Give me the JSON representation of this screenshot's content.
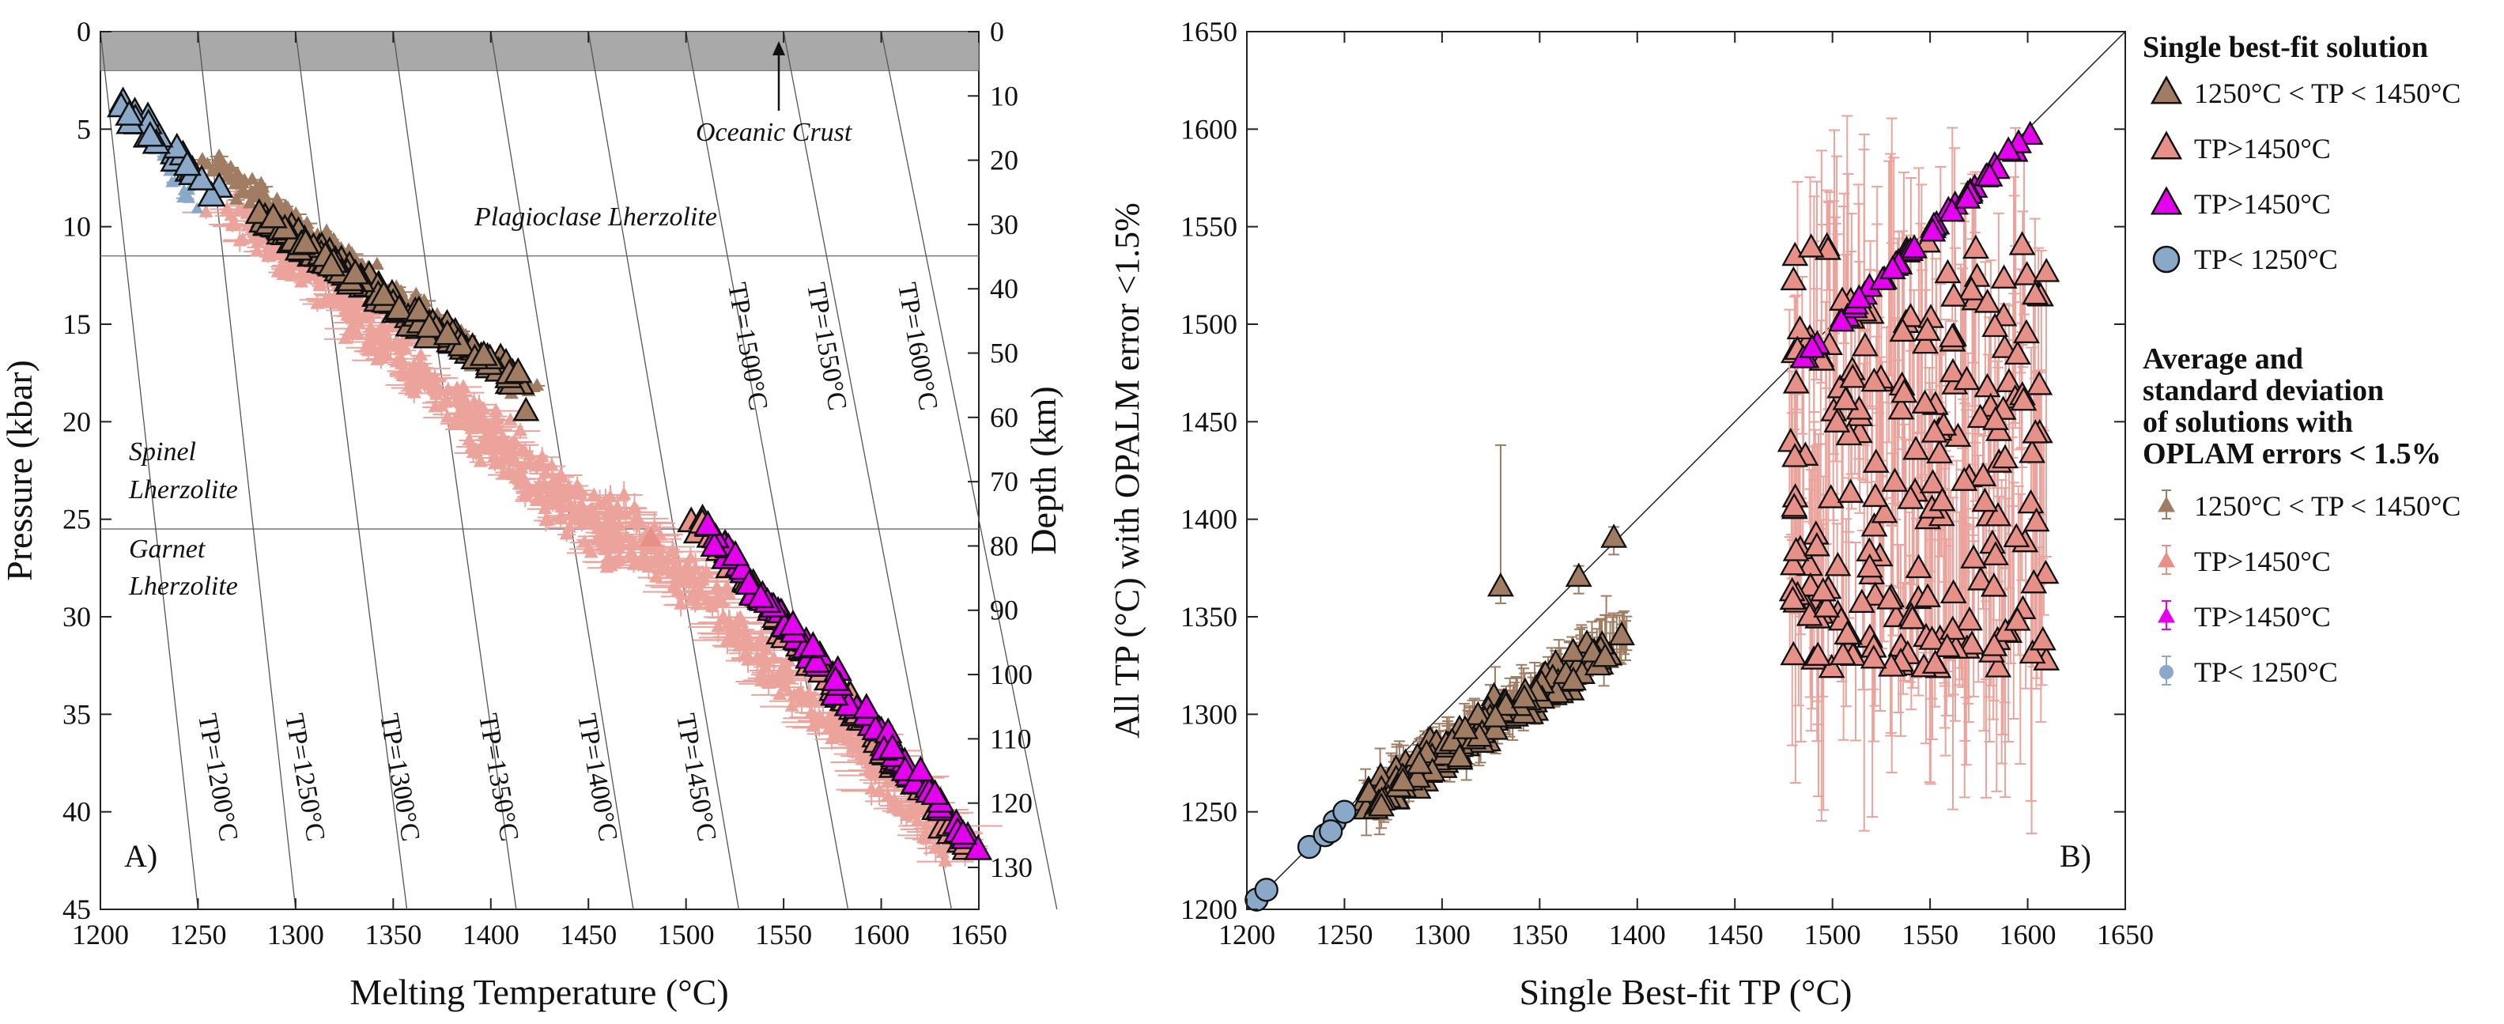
{
  "colors": {
    "brown": "#a07d62",
    "salmon": "#e69088",
    "salmon_light": "#eba39c",
    "magenta": "#e600f0",
    "blue": "#8aa9c9",
    "crust": "#a9a9a9"
  },
  "chart_data": [
    {
      "type": "scatter",
      "panel_label": "A)",
      "xlabel": "Melting Temperature (°C)",
      "ylabel": "Pressure (kbar)",
      "ylabel_right": "Depth (km)",
      "xlim": [
        1200,
        1650
      ],
      "ylim": [
        45,
        0
      ],
      "xticks": [
        "1200",
        "1250",
        "1300",
        "1350",
        "1400",
        "1450",
        "1500",
        "1550",
        "1600",
        "1650"
      ],
      "yticks": [
        "0",
        "5",
        "10",
        "15",
        "20",
        "25",
        "30",
        "35",
        "40",
        "45"
      ],
      "depth_ticks": [
        "0",
        "10",
        "20",
        "30",
        "40",
        "50",
        "60",
        "70",
        "80",
        "90",
        "100",
        "110",
        "120",
        "130"
      ],
      "adiabat_labels": [
        "TP=1200°C",
        "TP=1250°C",
        "TP=1300°C",
        "TP=1350°C",
        "TP=1400°C",
        "TP=1450°C",
        "TP=1500°C",
        "TP=1550°C",
        "TP=1600°C"
      ],
      "adiabats": [
        {
          "tp": 1200,
          "t0": 1200,
          "t45": 1250
        },
        {
          "tp": 1250,
          "t0": 1250,
          "t45": 1300
        },
        {
          "tp": 1300,
          "t0": 1300,
          "t45": 1357
        },
        {
          "tp": 1350,
          "t0": 1350,
          "t45": 1413
        },
        {
          "tp": 1400,
          "t0": 1400,
          "t45": 1473
        },
        {
          "tp": 1450,
          "t0": 1450,
          "t45": 1527
        },
        {
          "tp": 1500,
          "t0": 1500,
          "t45": 1583
        },
        {
          "tp": 1550,
          "t0": 1550,
          "t45": 1636
        },
        {
          "tp": 1600,
          "t0": 1600,
          "t45": 1690
        }
      ],
      "annotations": {
        "oceanic_crust": "Oceanic Crust",
        "plagioclase": "Plagioclase Lherzolite",
        "spinel_1": "Spinel",
        "spinel_2": "Lherzolite",
        "garnet_1": "Garnet",
        "garnet_2": "Lherzolite"
      },
      "crust_pressure": 2.0,
      "boundary_pressures": [
        11.5,
        25.5
      ],
      "series": [
        {
          "name": "1250°C < TP < 1450°C",
          "marker": "triangle",
          "color": "brown",
          "band": {
            "t": [
              1255,
              1420
            ],
            "p": [
              6,
              19
            ]
          }
        },
        {
          "name": "TP>1450°C",
          "marker": "triangle",
          "color": "salmon",
          "band": {
            "t": [
              1480,
              1648
            ],
            "p": [
              26,
              43
            ]
          }
        },
        {
          "name": "TP>1450°C",
          "marker": "triangle",
          "color": "magenta",
          "band": {
            "t": [
              1505,
              1650
            ],
            "p": [
              24.5,
              42
            ]
          }
        },
        {
          "name": "TP< 1250°C",
          "marker": "triangle",
          "color": "blue",
          "band": {
            "t": [
              1205,
              1250
            ],
            "p": [
              3.5,
              9
            ]
          }
        }
      ]
    },
    {
      "type": "scatter",
      "panel_label": "B)",
      "xlabel": "Single Best-fit TP (°C)",
      "ylabel": "All TP (°C) with OPALM error <1.5%",
      "xlim": [
        1200,
        1650
      ],
      "ylim": [
        1200,
        1650
      ],
      "xticks": [
        "1200",
        "1250",
        "1300",
        "1350",
        "1400",
        "1450",
        "1500",
        "1550",
        "1600",
        "1650"
      ],
      "yticks": [
        "1200",
        "1250",
        "1300",
        "1350",
        "1400",
        "1450",
        "1500",
        "1550",
        "1600",
        "1650"
      ],
      "one_to_one": true,
      "series": [
        {
          "name": "1250°C < TP < 1450°C",
          "marker": "triangle",
          "color": "brown",
          "band": {
            "x": [
              1255,
              1395
            ],
            "y": [
              1245,
              1390
            ]
          }
        },
        {
          "name": "TP>1450°C",
          "marker": "triangle",
          "color": "salmon",
          "band": {
            "x": [
              1478,
              1610
            ],
            "y": [
              1320,
              1545
            ]
          }
        },
        {
          "name": "TP>1450°C",
          "marker": "triangle",
          "color": "magenta",
          "band": {
            "x": [
              1482,
              1608
            ],
            "y": [
              1480,
              1608
            ]
          }
        },
        {
          "name": "TP< 1250°C",
          "marker": "circle",
          "color": "blue",
          "band": {
            "x": [
              1205,
              1250
            ],
            "y": [
              1205,
              1250
            ]
          }
        }
      ]
    }
  ],
  "legend": {
    "heading1": "Single best-fit solution",
    "items1": [
      {
        "label": "1250°C < TP < 1450°C",
        "color": "brown",
        "marker": "triangle"
      },
      {
        "label": "TP>1450°C",
        "color": "salmon",
        "marker": "triangle"
      },
      {
        "label": "TP>1450°C",
        "color": "magenta",
        "marker": "triangle"
      },
      {
        "label": "TP< 1250°C",
        "color": "blue",
        "marker": "circle"
      }
    ],
    "heading2": [
      "Average and",
      "standard deviation",
      "of solutions with",
      "OPLAM errors < 1.5%"
    ],
    "items2": [
      {
        "label": "1250°C < TP < 1450°C",
        "color": "brown",
        "marker": "triangle-err"
      },
      {
        "label": "TP>1450°C",
        "color": "salmon",
        "marker": "triangle-err"
      },
      {
        "label": "TP>1450°C",
        "color": "magenta",
        "marker": "triangle-err"
      },
      {
        "label": "TP< 1250°C",
        "color": "blue",
        "marker": "circle-err"
      }
    ]
  }
}
